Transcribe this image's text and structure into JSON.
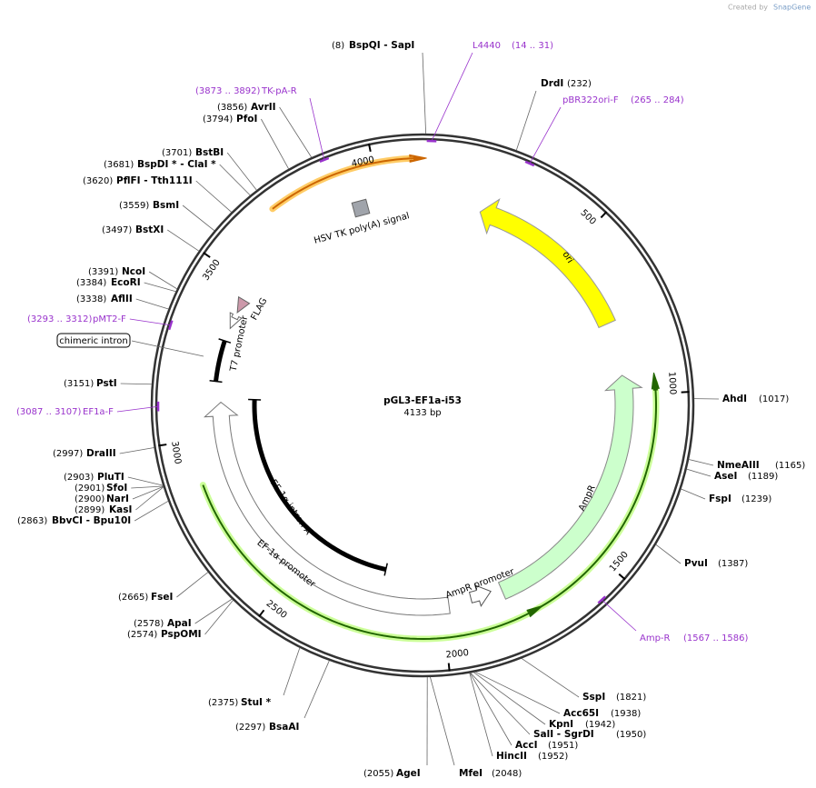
{
  "header": {
    "created_by": "Created by",
    "brand": "SnapGene"
  },
  "plasmid": {
    "name": "pGL3-EF1a-i53",
    "length": "4133 bp"
  },
  "scale_ticks": [
    500,
    1000,
    1500,
    2000,
    2500,
    3000,
    3500,
    4000
  ],
  "enzymes": [
    {
      "position": "(8)",
      "name": "BspQI - SapI"
    },
    {
      "position": "(232)",
      "name": "DrdI"
    },
    {
      "position": "(1017)",
      "name": "AhdI"
    },
    {
      "position": "(1165)",
      "name": "NmeAIII"
    },
    {
      "position": "(1189)",
      "name": "AseI"
    },
    {
      "position": "(1239)",
      "name": "FspI"
    },
    {
      "position": "(1387)",
      "name": "PvuI"
    },
    {
      "position": "(1821)",
      "name": "SspI"
    },
    {
      "position": "(1938)",
      "name": "Acc65I"
    },
    {
      "position": "(1942)",
      "name": "KpnI"
    },
    {
      "position": "(1950)",
      "name": "SalI - SgrDI"
    },
    {
      "position": "(1951)",
      "name": "AccI"
    },
    {
      "position": "(1952)",
      "name": "HincII"
    },
    {
      "position": "(2048)",
      "name": "MfeI"
    },
    {
      "position": "(2055)",
      "name": "AgeI"
    },
    {
      "position": "(2297)",
      "name": "BsaAI"
    },
    {
      "position": "(2375)",
      "name": "StuI *"
    },
    {
      "position": "(2574)",
      "name": "PspOMI"
    },
    {
      "position": "(2578)",
      "name": "ApaI"
    },
    {
      "position": "(2665)",
      "name": "FseI"
    },
    {
      "position": "(2863)",
      "name": "BbvCI - Bpu10I"
    },
    {
      "position": "(2899)",
      "name": "KasI"
    },
    {
      "position": "(2900)",
      "name": "NarI"
    },
    {
      "position": "(2901)",
      "name": "SfoI"
    },
    {
      "position": "(2903)",
      "name": "PluTI"
    },
    {
      "position": "(2997)",
      "name": "DraIII"
    },
    {
      "position": "(3151)",
      "name": "PstI"
    },
    {
      "position": "(3338)",
      "name": "AflII"
    },
    {
      "position": "(3384)",
      "name": "EcoRI"
    },
    {
      "position": "(3391)",
      "name": "NcoI"
    },
    {
      "position": "(3497)",
      "name": "BstXI"
    },
    {
      "position": "(3559)",
      "name": "BsmI"
    },
    {
      "position": "(3620)",
      "name": "PflFI - Tth111I"
    },
    {
      "position": "(3681)",
      "name": "BspDI * - ClaI *"
    },
    {
      "position": "(3701)",
      "name": "BstBI"
    },
    {
      "position": "(3794)",
      "name": "PfoI"
    },
    {
      "position": "(3856)",
      "name": "AvrII"
    }
  ],
  "primers": [
    {
      "name": "L4440",
      "range": "(14 .. 31)"
    },
    {
      "name": "pBR322ori-F",
      "range": "(265 .. 284)"
    },
    {
      "name": "TK-pA-R",
      "range": "(3873 .. 3892)"
    },
    {
      "name": "pMT2-F",
      "range": "(3293 .. 3312)"
    },
    {
      "name": "EF1a-F",
      "range": "(3087 .. 3107)"
    },
    {
      "name": "Amp-R",
      "range": "(1567 .. 1586)"
    }
  ],
  "features": {
    "ori": "ori",
    "ampr": "AmpR",
    "ampr_promoter": "AmpR promoter",
    "ef1a_promoter": "EF-1α promoter",
    "ef1a_intron": "EF-1α intron A",
    "t7_promoter": "T7 promoter",
    "flag": "FLAG",
    "hsv_tk": "HSV TK poly(A) signal",
    "chimeric_intron": "chimeric intron"
  }
}
